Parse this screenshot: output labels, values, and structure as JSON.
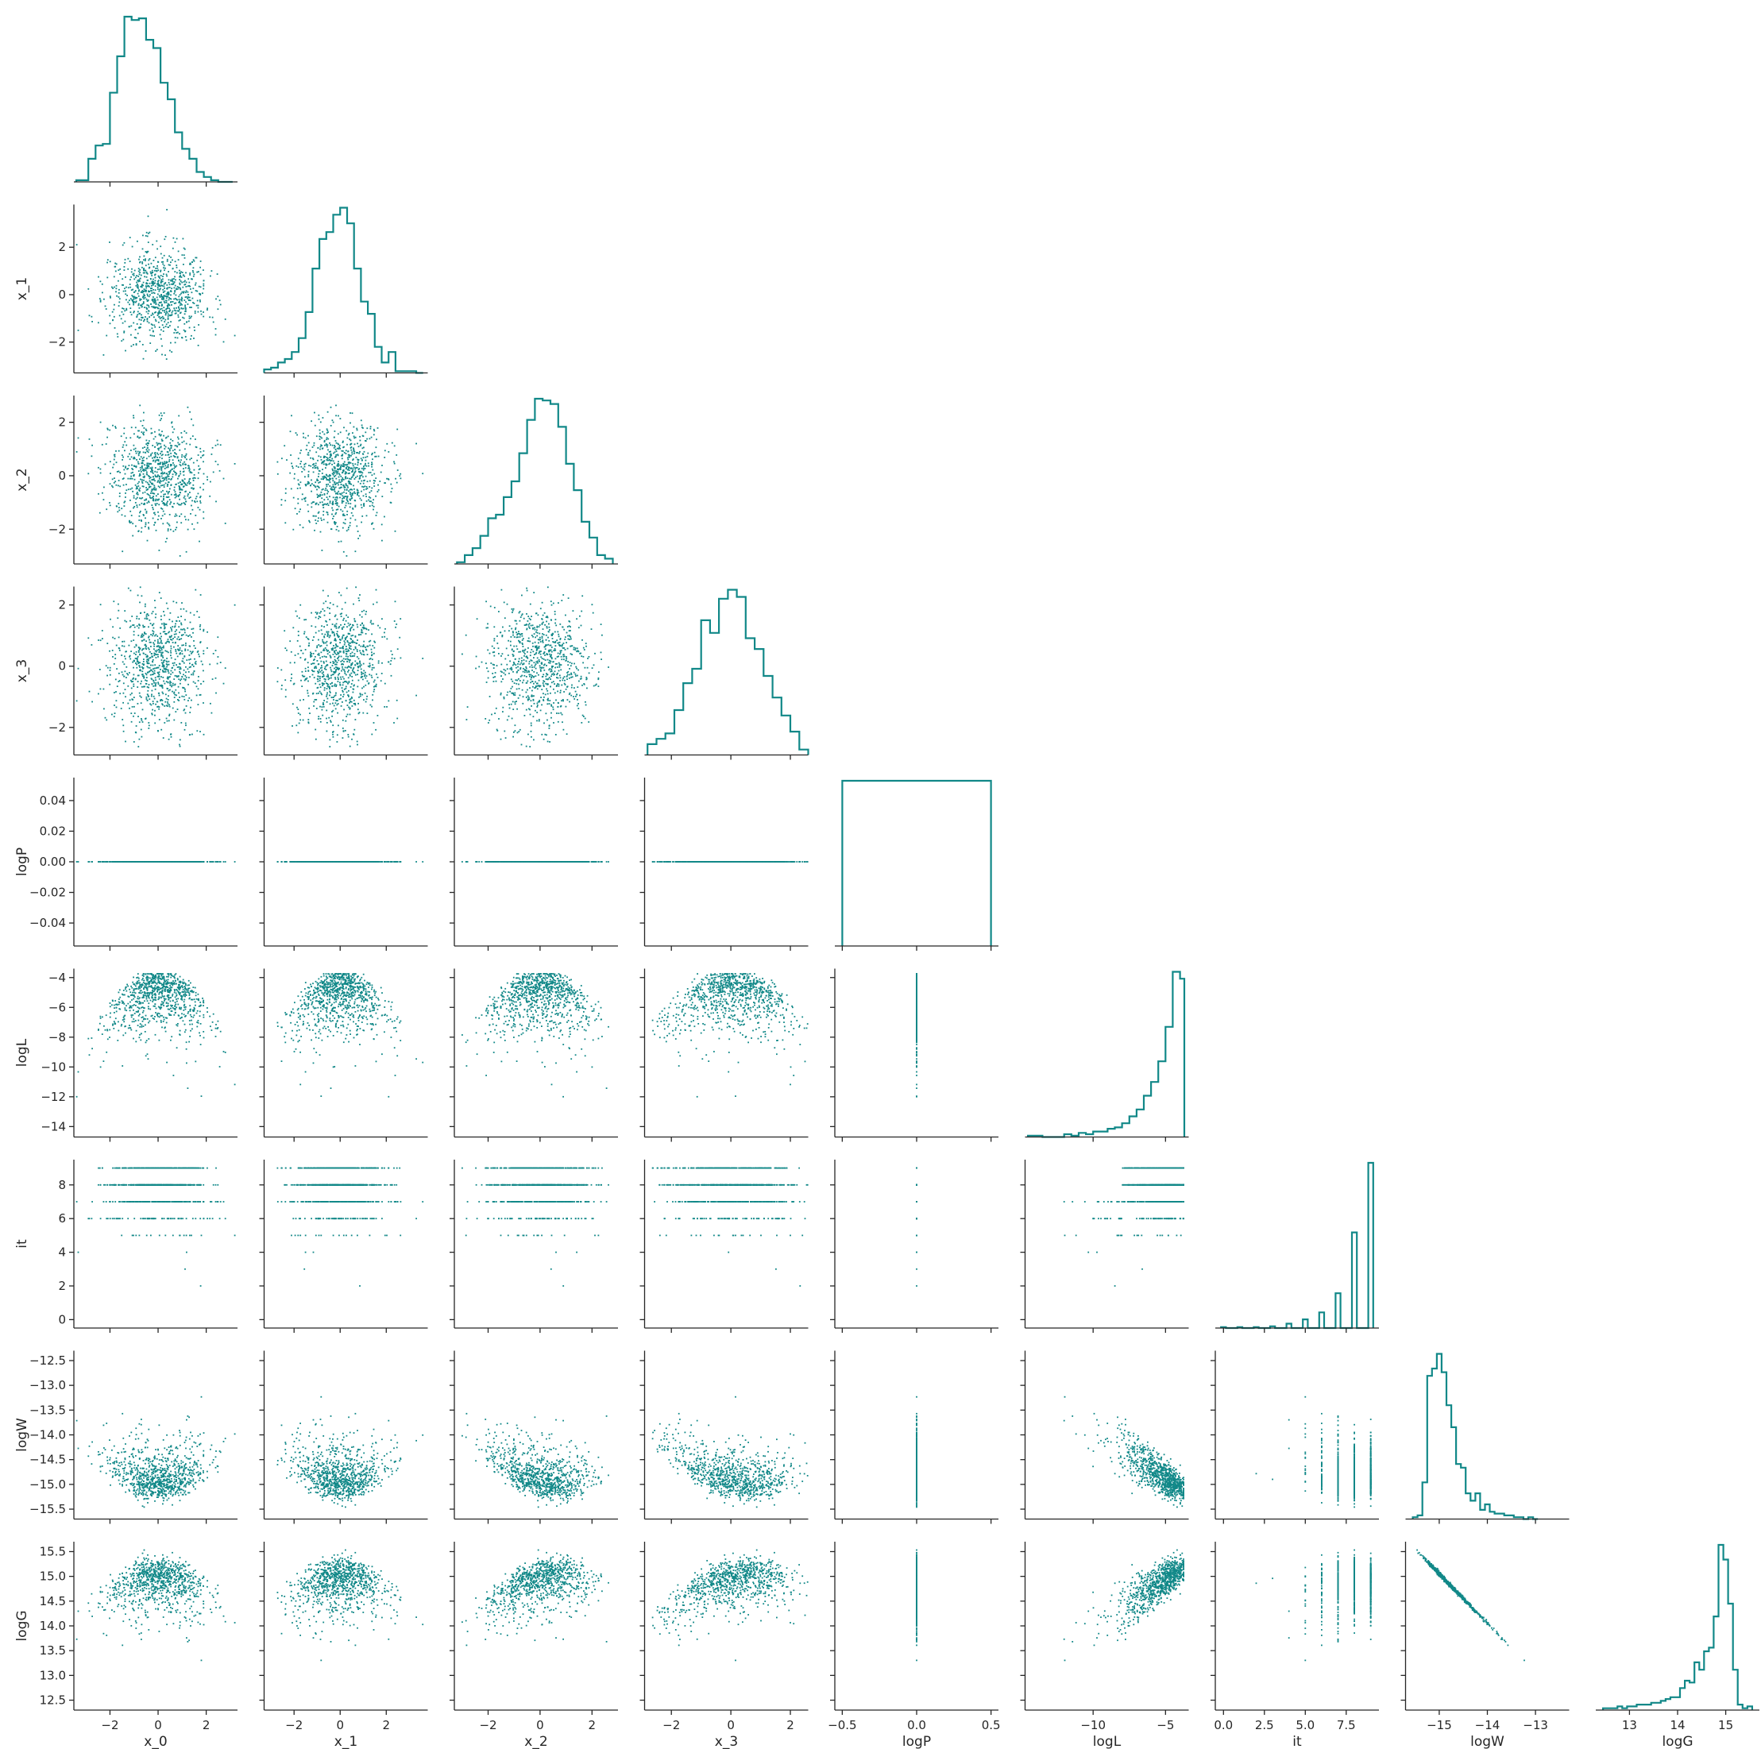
{
  "chart_data": {
    "type": "scatter",
    "layout": "corner pair plot",
    "colors": {
      "marks": "#118888",
      "axes": "#262626",
      "background": "#ffffff"
    },
    "variables": [
      {
        "name": "x_0",
        "range": [
          -3.5,
          3.3
        ],
        "ticks": [
          -2,
          0,
          2
        ],
        "tick_labels": [
          "−2",
          "0",
          "2"
        ],
        "hist": {
          "bins": [
            -3.4,
            -2.9,
            -2.6,
            -2.3,
            -2.0,
            -1.7,
            -1.4,
            -1.1,
            -0.8,
            -0.5,
            -0.2,
            0.1,
            0.4,
            0.7,
            1.0,
            1.3,
            1.6,
            1.9,
            2.2,
            2.5,
            2.8,
            3.1
          ],
          "counts": [
            1,
            14,
            22,
            23,
            54,
            76,
            100,
            98,
            99,
            86,
            81,
            60,
            50,
            30,
            20,
            14,
            6,
            3,
            1,
            0,
            0
          ]
        }
      },
      {
        "name": "x_1",
        "range": [
          -3.3,
          3.8
        ],
        "ticks": [
          -2,
          0,
          2
        ],
        "tick_labels": [
          "−2",
          "0",
          "2"
        ],
        "hist": {
          "bins": [
            -3.3,
            -3.0,
            -2.7,
            -2.4,
            -2.1,
            -1.8,
            -1.5,
            -1.2,
            -0.9,
            -0.6,
            -0.3,
            0.0,
            0.3,
            0.6,
            0.9,
            1.2,
            1.5,
            1.8,
            2.1,
            2.4,
            2.7,
            3.0,
            3.3,
            3.6
          ],
          "counts": [
            2,
            3,
            6,
            8,
            12,
            20,
            35,
            60,
            77,
            81,
            91,
            95,
            86,
            60,
            41,
            34,
            15,
            6,
            12,
            1,
            1,
            1,
            0
          ]
        }
      },
      {
        "name": "x_2",
        "range": [
          -3.3,
          3.0
        ],
        "ticks": [
          -2,
          0,
          2
        ],
        "tick_labels": [
          "−2",
          "0",
          "2"
        ],
        "hist": {
          "bins": [
            -3.2,
            -2.9,
            -2.6,
            -2.3,
            -2.0,
            -1.7,
            -1.4,
            -1.1,
            -0.8,
            -0.5,
            -0.2,
            0.1,
            0.4,
            0.7,
            1.0,
            1.3,
            1.6,
            1.9,
            2.2,
            2.5,
            2.8
          ],
          "counts": [
            1,
            5,
            9,
            16,
            26,
            28,
            38,
            47,
            63,
            82,
            94,
            93,
            91,
            78,
            57,
            42,
            24,
            15,
            5,
            3
          ]
        }
      },
      {
        "name": "x_3",
        "range": [
          -2.9,
          2.6
        ],
        "ticks": [
          -2,
          0,
          2
        ],
        "tick_labels": [
          "−2",
          "0",
          "2"
        ],
        "hist": {
          "bins": [
            -2.8,
            -2.5,
            -2.2,
            -1.9,
            -1.6,
            -1.3,
            -1.0,
            -0.7,
            -0.4,
            -0.1,
            0.2,
            0.5,
            0.8,
            1.1,
            1.4,
            1.7,
            2.0,
            2.3,
            2.6
          ],
          "counts": [
            6,
            9,
            12,
            25,
            40,
            48,
            75,
            68,
            87,
            92,
            88,
            65,
            59,
            44,
            32,
            22,
            13,
            3
          ]
        }
      },
      {
        "name": "logP",
        "range": [
          -0.055,
          0.055
        ],
        "ticks": [
          -0.04,
          -0.02,
          0,
          0.02,
          0.04
        ],
        "tick_labels": [
          "−0.04",
          "−0.02",
          "0.00",
          "0.02",
          "0.04"
        ],
        "xrange": [
          -0.55,
          0.55
        ],
        "xticks": [
          -0.5,
          0,
          0.5
        ],
        "xtick_labels": [
          "−0.5",
          "0.0",
          "0.5"
        ],
        "hist": {
          "bins": [
            -0.5,
            0.5
          ],
          "counts": [
            100
          ]
        }
      },
      {
        "name": "logL",
        "range": [
          -14.7,
          -3.4
        ],
        "ticks": [
          -14,
          -12,
          -10,
          -8,
          -6,
          -4
        ],
        "tick_labels": [
          "−14",
          "−12",
          "−10",
          "−8",
          "−6",
          "−4"
        ],
        "xticks": [
          -10,
          -5
        ],
        "xtick_labels": [
          "−10",
          "−5"
        ],
        "hist": {
          "bins": [
            -14.5,
            -14.0,
            -13.5,
            -13.0,
            -12.5,
            -12.0,
            -11.5,
            -11.0,
            -10.5,
            -10.0,
            -9.5,
            -9.0,
            -8.5,
            -8.0,
            -7.5,
            -7.0,
            -6.5,
            -6.0,
            -5.5,
            -5.0,
            -4.5,
            -4.0,
            -3.7
          ],
          "counts": [
            1,
            1,
            0,
            0,
            0,
            2,
            1,
            3,
            2,
            4,
            4,
            6,
            7,
            10,
            15,
            20,
            30,
            40,
            55,
            80,
            120,
            115,
            0
          ]
        }
      },
      {
        "name": "it",
        "range": [
          -0.5,
          9.5
        ],
        "ticks": [
          0,
          2,
          4,
          6,
          8
        ],
        "tick_labels": [
          "0",
          "2",
          "4",
          "6",
          "8"
        ],
        "xticks": [
          0,
          2.5,
          5,
          7.5
        ],
        "xtick_labels": [
          "0.0",
          "2.5",
          "5.0",
          "7.5"
        ],
        "hist": {
          "bins": [
            -0.15,
            0.15,
            0.85,
            1.15,
            1.85,
            2.15,
            2.85,
            3.15,
            3.85,
            4.15,
            4.85,
            5.15,
            5.85,
            6.15,
            6.85,
            7.15,
            7.85,
            8.15,
            8.85,
            9.15
          ],
          "counts": [
            1,
            0,
            1,
            0,
            1,
            0,
            2,
            0,
            5,
            0,
            10,
            0,
            18,
            0,
            40,
            0,
            110,
            0,
            190
          ]
        }
      },
      {
        "name": "logW",
        "range": [
          -15.7,
          -12.3
        ],
        "ticks": [
          -15.5,
          -15,
          -14.5,
          -14,
          -13.5,
          -13,
          -12.5
        ],
        "tick_labels": [
          "−15.5",
          "−15.0",
          "−14.5",
          "−14.0",
          "−13.5",
          "−13.0",
          "−12.5"
        ],
        "xticks": [
          -15,
          -14,
          -13
        ],
        "xtick_labels": [
          "−15",
          "−14",
          "−13"
        ],
        "hist": {
          "bins": [
            -15.55,
            -15.45,
            -15.35,
            -15.25,
            -15.15,
            -15.05,
            -14.95,
            -14.85,
            -14.75,
            -14.65,
            -14.55,
            -14.45,
            -14.35,
            -14.25,
            -14.15,
            -14.05,
            -13.95,
            -13.85,
            -13.75,
            -13.65,
            -13.55,
            -13.45,
            -13.35,
            -13.25,
            -13.15,
            -13.05,
            -12.95
          ],
          "counts": [
            1,
            2,
            20,
            78,
            82,
            90,
            80,
            62,
            50,
            30,
            28,
            14,
            10,
            14,
            5,
            8,
            4,
            3,
            3,
            2,
            2,
            1,
            1,
            0,
            1,
            0
          ]
        }
      },
      {
        "name": "logG",
        "range": [
          12.3,
          15.7
        ],
        "ticks": [
          12.5,
          13,
          13.5,
          14,
          14.5,
          15,
          15.5
        ],
        "tick_labels": [
          "12.5",
          "13.0",
          "13.5",
          "14.0",
          "14.5",
          "15.0",
          "15.5"
        ],
        "xticks": [
          13,
          14,
          15
        ],
        "xtick_labels": [
          "13",
          "14",
          "15"
        ],
        "hist": {
          "bins": [
            12.45,
            12.55,
            12.65,
            12.75,
            12.85,
            12.95,
            13.05,
            13.15,
            13.25,
            13.35,
            13.45,
            13.55,
            13.65,
            13.75,
            13.85,
            13.95,
            14.05,
            14.15,
            14.25,
            14.35,
            14.45,
            14.55,
            14.65,
            14.75,
            14.85,
            14.95,
            15.05,
            15.15,
            15.25,
            15.35,
            15.45,
            15.55
          ],
          "counts": [
            1,
            1,
            1,
            2,
            1,
            2,
            2,
            3,
            3,
            3,
            4,
            4,
            5,
            6,
            7,
            7,
            12,
            16,
            15,
            26,
            22,
            32,
            34,
            51,
            90,
            82,
            58,
            22,
            3,
            1,
            2
          ]
        }
      }
    ]
  }
}
